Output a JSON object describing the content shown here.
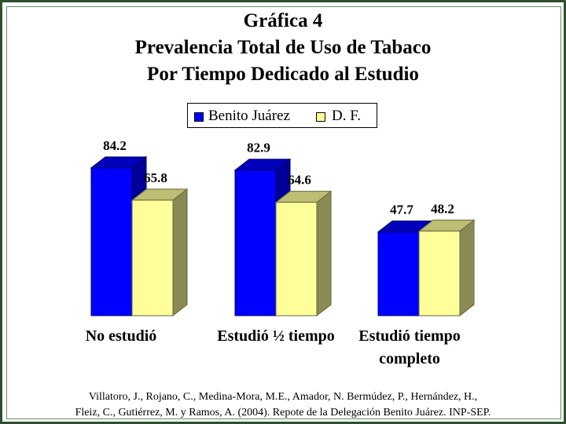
{
  "chart_data": {
    "type": "bar",
    "title_lines": [
      "Gráfica 4",
      "Prevalencia Total de Uso de Tabaco",
      "Por Tiempo Dedicado al Estudio"
    ],
    "categories": [
      [
        "No estudió"
      ],
      [
        "Estudió ½ tiempo"
      ],
      [
        "Estudió tiempo",
        "completo"
      ]
    ],
    "series": [
      {
        "name": "Benito Juárez",
        "values": [
          84.2,
          82.9,
          47.7
        ],
        "labels": [
          "84.2",
          "82.9",
          "47.7"
        ],
        "color": "#0000ff"
      },
      {
        "name": "D. F.",
        "values": [
          65.8,
          64.6,
          48.2
        ],
        "labels": [
          "65.8",
          "64.6",
          "48.2"
        ],
        "color": "#ffff99"
      }
    ],
    "ylim": [
      0,
      100
    ],
    "grid": false,
    "legend_position": "top-center"
  },
  "citation": {
    "line1": "Villatoro, J., Rojano, C., Medina-Mora, M.E., Amador, N. Bermúdez, P., Hernández, H.,",
    "line2": "Fleiz, C., Gutiérrez, M. y Ramos, A. (2004). Repote de la Delegación Benito Juárez. INP-SEP."
  }
}
